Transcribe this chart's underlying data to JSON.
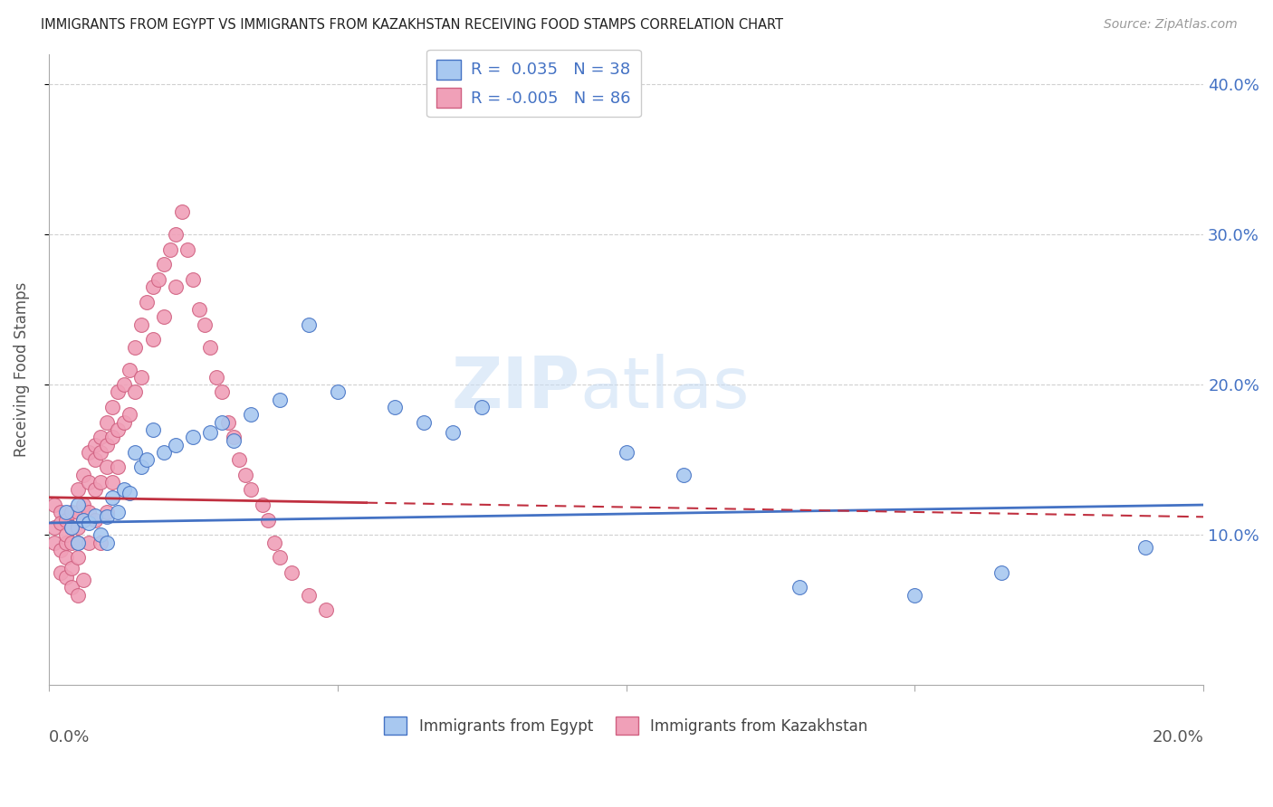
{
  "title": "IMMIGRANTS FROM EGYPT VS IMMIGRANTS FROM KAZAKHSTAN RECEIVING FOOD STAMPS CORRELATION CHART",
  "source": "Source: ZipAtlas.com",
  "ylabel": "Receiving Food Stamps",
  "xlim": [
    0.0,
    0.2
  ],
  "ylim": [
    0.0,
    0.42
  ],
  "yticks": [
    0.1,
    0.2,
    0.3,
    0.4
  ],
  "ytick_labels": [
    "10.0%",
    "20.0%",
    "30.0%",
    "40.0%"
  ],
  "xticks": [
    0.0,
    0.05,
    0.1,
    0.15,
    0.2
  ],
  "color_egypt": "#a8c8f0",
  "color_kazakhstan": "#f0a0b8",
  "color_egypt_line": "#4472c4",
  "color_kazakhstan_line": "#c0304060",
  "color_kazakhstan_line_solid": "#c03040",
  "background_color": "#ffffff",
  "grid_color": "#d0d0d0",
  "egypt_x": [
    0.003,
    0.004,
    0.005,
    0.005,
    0.006,
    0.007,
    0.008,
    0.009,
    0.01,
    0.01,
    0.011,
    0.012,
    0.013,
    0.014,
    0.015,
    0.016,
    0.017,
    0.018,
    0.02,
    0.022,
    0.025,
    0.028,
    0.03,
    0.032,
    0.035,
    0.04,
    0.045,
    0.05,
    0.06,
    0.065,
    0.07,
    0.075,
    0.1,
    0.11,
    0.13,
    0.15,
    0.165,
    0.19
  ],
  "egypt_y": [
    0.115,
    0.105,
    0.12,
    0.095,
    0.11,
    0.108,
    0.113,
    0.1,
    0.112,
    0.095,
    0.125,
    0.115,
    0.13,
    0.128,
    0.155,
    0.145,
    0.15,
    0.17,
    0.155,
    0.16,
    0.165,
    0.168,
    0.175,
    0.163,
    0.18,
    0.19,
    0.24,
    0.195,
    0.185,
    0.175,
    0.168,
    0.185,
    0.155,
    0.14,
    0.065,
    0.06,
    0.075,
    0.092
  ],
  "kazakhstan_x": [
    0.001,
    0.001,
    0.001,
    0.002,
    0.002,
    0.002,
    0.002,
    0.003,
    0.003,
    0.003,
    0.003,
    0.003,
    0.004,
    0.004,
    0.004,
    0.004,
    0.004,
    0.005,
    0.005,
    0.005,
    0.005,
    0.005,
    0.005,
    0.006,
    0.006,
    0.006,
    0.006,
    0.007,
    0.007,
    0.007,
    0.007,
    0.008,
    0.008,
    0.008,
    0.008,
    0.009,
    0.009,
    0.009,
    0.009,
    0.01,
    0.01,
    0.01,
    0.01,
    0.011,
    0.011,
    0.011,
    0.012,
    0.012,
    0.012,
    0.013,
    0.013,
    0.014,
    0.014,
    0.015,
    0.015,
    0.016,
    0.016,
    0.017,
    0.018,
    0.018,
    0.019,
    0.02,
    0.02,
    0.021,
    0.022,
    0.022,
    0.023,
    0.024,
    0.025,
    0.026,
    0.027,
    0.028,
    0.029,
    0.03,
    0.031,
    0.032,
    0.033,
    0.034,
    0.035,
    0.037,
    0.038,
    0.039,
    0.04,
    0.042,
    0.045,
    0.048
  ],
  "kazakhstan_y": [
    0.12,
    0.105,
    0.095,
    0.115,
    0.09,
    0.108,
    0.075,
    0.095,
    0.11,
    0.085,
    0.1,
    0.072,
    0.115,
    0.105,
    0.095,
    0.078,
    0.065,
    0.13,
    0.115,
    0.105,
    0.095,
    0.085,
    0.06,
    0.12,
    0.14,
    0.11,
    0.07,
    0.155,
    0.135,
    0.115,
    0.095,
    0.16,
    0.15,
    0.13,
    0.11,
    0.165,
    0.155,
    0.135,
    0.095,
    0.175,
    0.16,
    0.145,
    0.115,
    0.185,
    0.165,
    0.135,
    0.195,
    0.17,
    0.145,
    0.2,
    0.175,
    0.21,
    0.18,
    0.225,
    0.195,
    0.24,
    0.205,
    0.255,
    0.265,
    0.23,
    0.27,
    0.28,
    0.245,
    0.29,
    0.3,
    0.265,
    0.315,
    0.29,
    0.27,
    0.25,
    0.24,
    0.225,
    0.205,
    0.195,
    0.175,
    0.165,
    0.15,
    0.14,
    0.13,
    0.12,
    0.11,
    0.095,
    0.085,
    0.075,
    0.06,
    0.05
  ],
  "egypt_line_y0": 0.108,
  "egypt_line_y1": 0.12,
  "kaz_line_y0": 0.125,
  "kaz_line_y1": 0.112
}
